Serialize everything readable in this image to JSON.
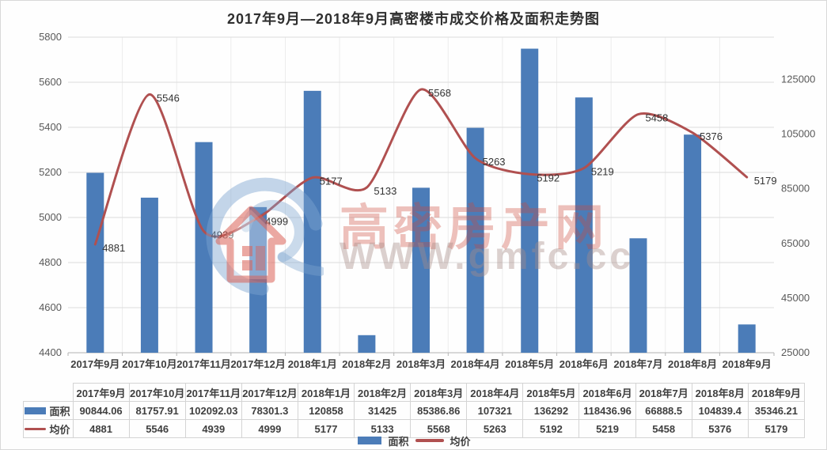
{
  "title": "2017年9月—2018年9月高密楼市成交价格及面积走势图",
  "colors": {
    "bar": "#4b7cb8",
    "line": "#b05050",
    "grid": "#dcdcdc",
    "grid_vertical": "#ececec",
    "axis_line": "#b3b3b3",
    "axis_text": "#595959",
    "category_text": "#3f3f3f",
    "point_label_text": "#333333",
    "table_border": "#d4d4d4"
  },
  "watermark": {
    "brand": "高密房产网",
    "url": "WWW.gmfc.cc",
    "logo": "house-swirl-logo"
  },
  "legend": {
    "area_label": "面积",
    "price_label": "均价"
  },
  "chart_data": {
    "type": "combo",
    "title": "2017年9月—2018年9月高密楼市成交价格及面积走势图",
    "categories": [
      "2017年9月",
      "2017年10月",
      "2017年11月",
      "2017年12月",
      "2018年1月",
      "2018年2月",
      "2018年3月",
      "2018年4月",
      "2018年5月",
      "2018年6月",
      "2018年7月",
      "2018年8月",
      "2018年9月"
    ],
    "series": [
      {
        "name": "面积",
        "type": "bar",
        "axis": "right",
        "color": "#4b7cb8",
        "values": [
          90844.06,
          81757.91,
          102092.03,
          78301.3,
          120858,
          31425,
          85386.86,
          107321,
          136292,
          118436.96,
          66888.5,
          104839.4,
          35346.21
        ]
      },
      {
        "name": "均价",
        "type": "line",
        "axis": "left",
        "color": "#b05050",
        "point_labels": true,
        "values": [
          4881,
          5546,
          4939,
          4999,
          5177,
          5133,
          5568,
          5263,
          5192,
          5219,
          5458,
          5376,
          5179
        ]
      }
    ],
    "left_axis": {
      "min": 4400,
      "max": 5800,
      "ticks": [
        5800,
        5600,
        5400,
        5200,
        5000,
        4800,
        4600,
        4400
      ]
    },
    "right_axis": {
      "min": 25000,
      "max": 140500,
      "ticks": [
        125000,
        105000,
        85000,
        65000,
        45000,
        25000
      ]
    },
    "grid": true,
    "legend_position": "bottom"
  },
  "table": {
    "corner": "",
    "columns": [
      "2017年9月",
      "2017年10月",
      "2017年11月",
      "2017年12月",
      "2018年1月",
      "2018年2月",
      "2018年3月",
      "2018年4月",
      "2018年5月",
      "2018年6月",
      "2018年7月",
      "2018年8月",
      "2018年9月"
    ],
    "rows": [
      {
        "label": "面积",
        "swatch": "bar",
        "values": [
          "90844.06",
          "81757.91",
          "102092.03",
          "78301.3",
          "120858",
          "31425",
          "85386.86",
          "107321",
          "136292",
          "118436.96",
          "66888.5",
          "104839.4",
          "35346.21"
        ]
      },
      {
        "label": "均价",
        "swatch": "line",
        "values": [
          "4881",
          "5546",
          "4939",
          "4999",
          "5177",
          "5133",
          "5568",
          "5263",
          "5192",
          "5219",
          "5458",
          "5376",
          "5179"
        ]
      }
    ]
  }
}
